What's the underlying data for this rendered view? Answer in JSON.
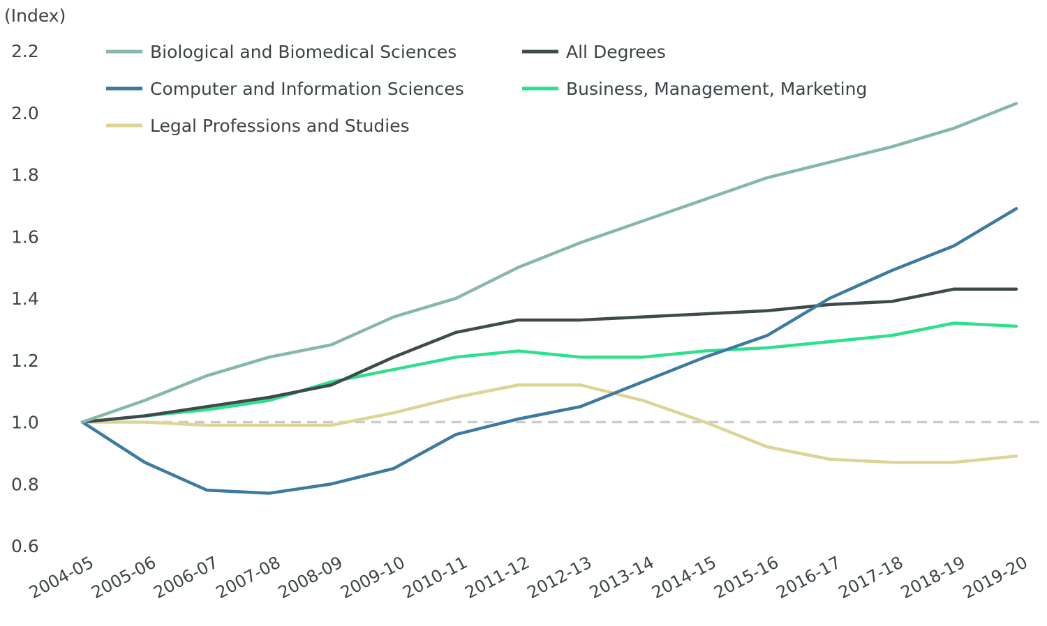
{
  "chart_data": {
    "type": "line",
    "ylabel": "(Index)",
    "ylim": [
      0.6,
      2.2
    ],
    "yticks": [
      "0.6",
      "0.8",
      "1.0",
      "1.2",
      "1.4",
      "1.6",
      "1.8",
      "2.0",
      "2.2"
    ],
    "categories": [
      "2004-05",
      "2005-06",
      "2006-07",
      "2007-08",
      "2008-09",
      "2009-10",
      "2010-11",
      "2011-12",
      "2012-13",
      "2013-14",
      "2014-15",
      "2015-16",
      "2016-17",
      "2017-18",
      "2018-19",
      "2019-20"
    ],
    "reference_line": {
      "value": 1.0,
      "style": "dashed",
      "color": "#c9cdcd"
    },
    "grid": false,
    "legend_position": "top-left",
    "series": [
      {
        "name": "Biological and Biomedical Sciences",
        "color": "#86b8a8",
        "values": [
          1.0,
          1.07,
          1.15,
          1.21,
          1.25,
          1.34,
          1.4,
          1.5,
          1.58,
          1.65,
          1.72,
          1.79,
          1.84,
          1.89,
          1.95,
          2.03
        ]
      },
      {
        "name": "All Degrees",
        "color": "#3e4a4b",
        "values": [
          1.0,
          1.02,
          1.05,
          1.08,
          1.12,
          1.21,
          1.29,
          1.33,
          1.33,
          1.34,
          1.35,
          1.36,
          1.38,
          1.39,
          1.43,
          1.43
        ]
      },
      {
        "name": "Computer and Information Sciences",
        "color": "#3d7aa0",
        "values": [
          1.0,
          0.87,
          0.78,
          0.77,
          0.8,
          0.85,
          0.96,
          1.01,
          1.05,
          1.13,
          1.21,
          1.28,
          1.4,
          1.49,
          1.57,
          1.69
        ]
      },
      {
        "name": "Business, Management, Marketing",
        "color": "#2ee08c",
        "values": [
          1.0,
          1.02,
          1.04,
          1.07,
          1.13,
          1.17,
          1.21,
          1.23,
          1.21,
          1.21,
          1.23,
          1.24,
          1.26,
          1.28,
          1.32,
          1.31
        ]
      },
      {
        "name": "Legal Professions and Studies",
        "color": "#dcd596",
        "values": [
          1.0,
          1.0,
          0.99,
          0.99,
          0.99,
          1.03,
          1.08,
          1.12,
          1.12,
          1.07,
          1.0,
          0.92,
          0.88,
          0.87,
          0.87,
          0.89
        ]
      }
    ]
  }
}
